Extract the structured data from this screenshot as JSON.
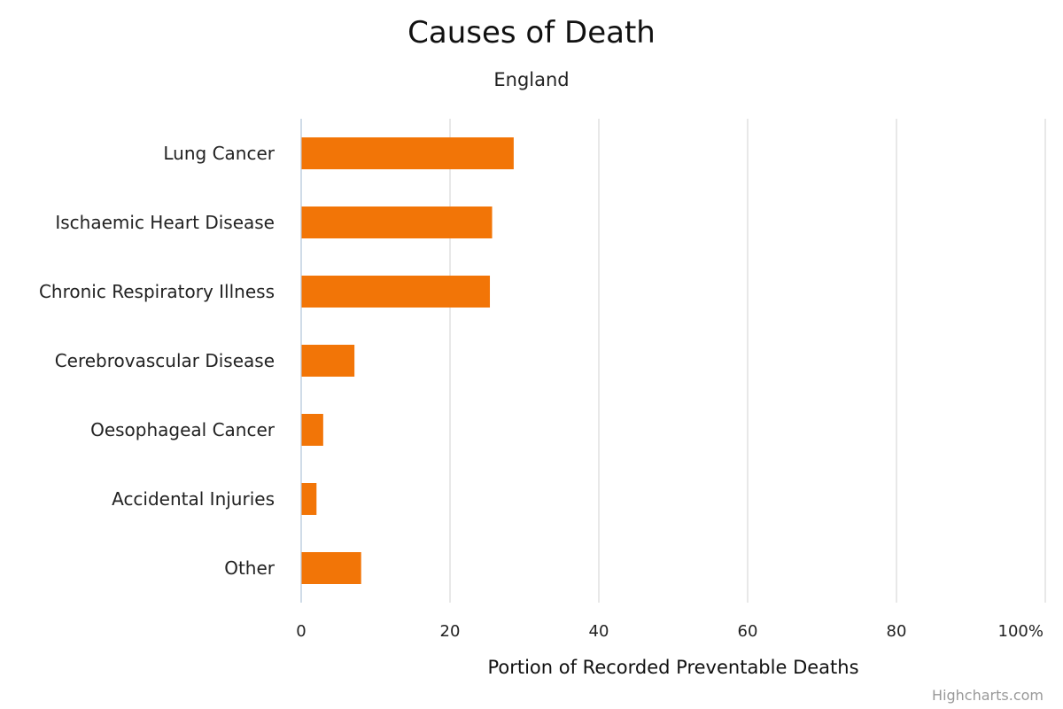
{
  "chart_data": {
    "type": "bar",
    "orientation": "horizontal",
    "title": "Causes of Death",
    "subtitle": "England",
    "categories": [
      "Lung Cancer",
      "Ischaemic Heart Disease",
      "Chronic Respiratory Illness",
      "Cerebrovascular Disease",
      "Oesophageal Cancer",
      "Accidental Injuries",
      "Other"
    ],
    "values": [
      28.5,
      25.6,
      25.3,
      7.1,
      2.9,
      2.0,
      8.0
    ],
    "xlabel": "Portion of Recorded Preventable Deaths",
    "ylabel": "",
    "xlim": [
      0,
      100
    ],
    "ticks": [
      "0",
      "20",
      "40",
      "60",
      "80",
      "100%"
    ],
    "grid": true,
    "bar_color": "#F27507",
    "grid_color": "#e0e0e0",
    "axis_color": "#c0d0e0",
    "credits": "Highcharts.com"
  }
}
